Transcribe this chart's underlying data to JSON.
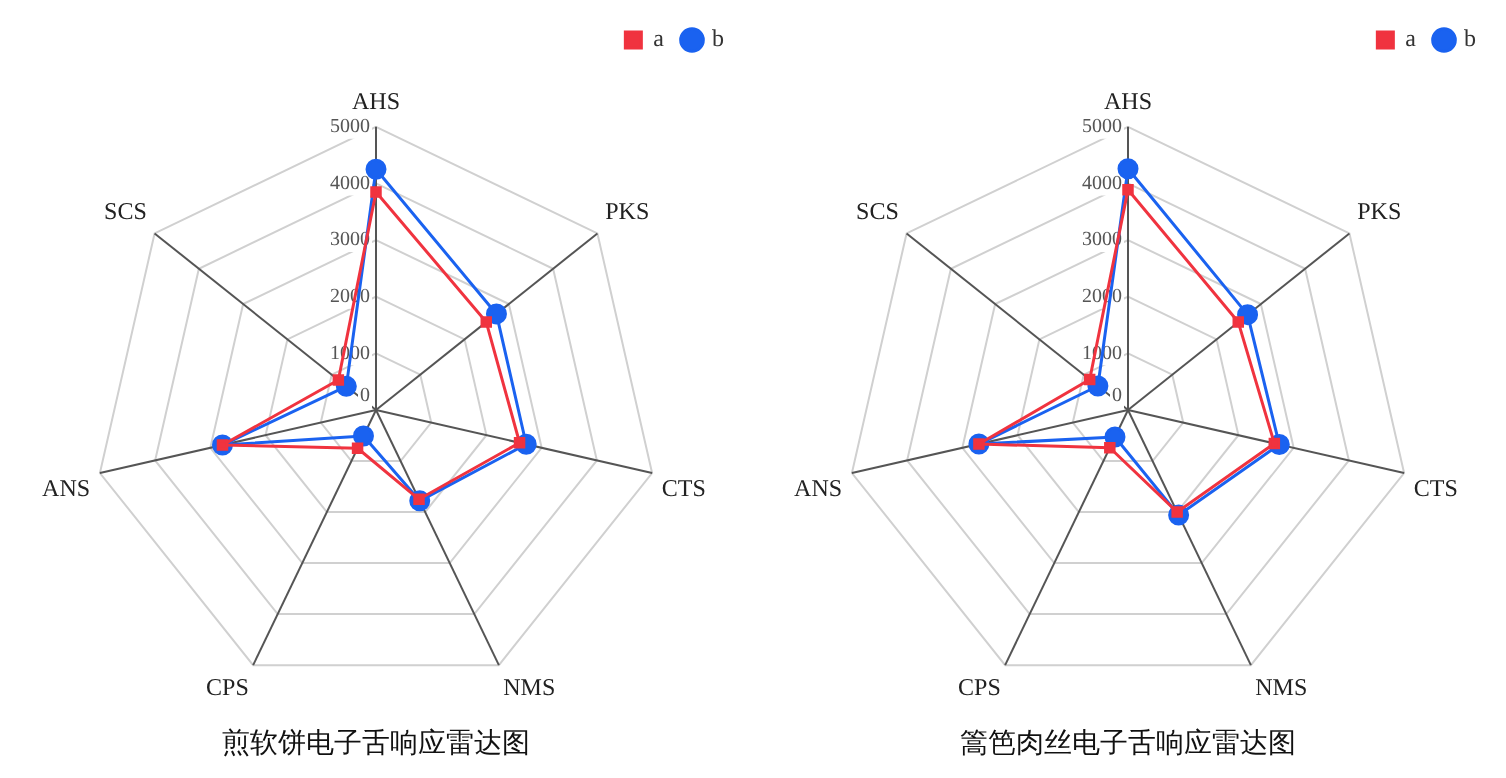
{
  "chart_data": [
    {
      "type": "radar",
      "title": "煎软饼电子舌响应雷达图",
      "categories": [
        "AHS",
        "PKS",
        "CTS",
        "NMS",
        "CPS",
        "ANS",
        "SCS"
      ],
      "ylim": [
        0,
        5000
      ],
      "yticks": [
        0,
        1000,
        2000,
        3000,
        4000,
        5000
      ],
      "grid": true,
      "legend": "top right",
      "line_style": "solid",
      "series": [
        {
          "name": "a",
          "color": "#f0333f",
          "marker": "square",
          "values": [
            3850,
            2490,
            2600,
            1750,
            750,
            2780,
            850
          ]
        },
        {
          "name": "b",
          "color": "#1a62f0",
          "marker": "circle",
          "values": [
            4250,
            2720,
            2720,
            1780,
            510,
            2780,
            670
          ]
        }
      ]
    },
    {
      "type": "radar",
      "title": "篙笆肉丝电子舌响应雷达图",
      "categories": [
        "AHS",
        "PKS",
        "CTS",
        "NMS",
        "CPS",
        "ANS",
        "SCS"
      ],
      "ylim": [
        0,
        5000
      ],
      "yticks": [
        0,
        1000,
        2000,
        3000,
        4000,
        5000
      ],
      "grid": true,
      "legend": "top right",
      "line_style": "solid",
      "series": [
        {
          "name": "a",
          "color": "#f0333f",
          "marker": "square",
          "values": [
            3890,
            2490,
            2650,
            2000,
            740,
            2700,
            865
          ]
        },
        {
          "name": "b",
          "color": "#1a62f0",
          "marker": "circle",
          "values": [
            4260,
            2700,
            2740,
            2060,
            530,
            2700,
            680
          ]
        }
      ]
    }
  ]
}
